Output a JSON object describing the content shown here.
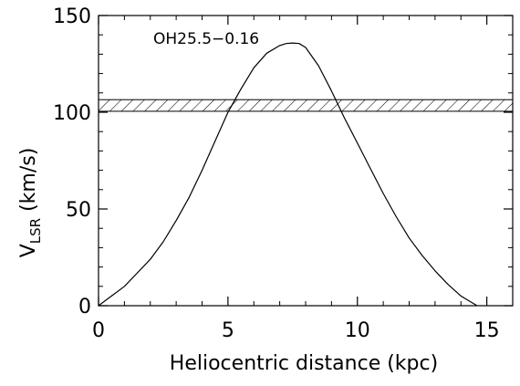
{
  "chart_data": {
    "type": "line",
    "title": "",
    "xlabel": "Heliocentric distance (kpc)",
    "ylabel_main": "V",
    "ylabel_sub": "LSR",
    "ylabel_unit": " (km/s)",
    "annotation": "OH25.5−0.16",
    "xlim": [
      0,
      16
    ],
    "ylim": [
      0,
      150
    ],
    "x_ticks": [
      0,
      5,
      10,
      15
    ],
    "y_ticks": [
      0,
      50,
      100,
      150
    ],
    "x_tick_labels": [
      "0",
      "5",
      "10",
      "15"
    ],
    "y_tick_labels": [
      "0",
      "50",
      "100",
      "150"
    ],
    "grid": false,
    "series": [
      {
        "x": [
          0,
          0.5,
          1,
          1.5,
          2,
          2.5,
          3,
          3.5,
          4,
          4.5,
          5,
          5.5,
          6,
          6.5,
          7,
          7.25,
          7.5,
          7.75,
          8,
          8.5,
          9,
          9.5,
          10,
          10.5,
          11,
          11.5,
          12,
          12.5,
          13,
          13.5,
          14,
          14.5,
          15
        ],
        "y": [
          0,
          5,
          10,
          17,
          24,
          33,
          44,
          56,
          70,
          85,
          100,
          112,
          123,
          130.5,
          134.5,
          135.5,
          135.8,
          135.5,
          133.5,
          124,
          111,
          97,
          84,
          71,
          58,
          46,
          35,
          26,
          18,
          11,
          5,
          1,
          -3
        ]
      }
    ],
    "band": {
      "y_min": 100.5,
      "y_max": 106.5,
      "fill": "hatched"
    },
    "colors": {
      "line": "#000000",
      "background": "#ffffff"
    }
  }
}
